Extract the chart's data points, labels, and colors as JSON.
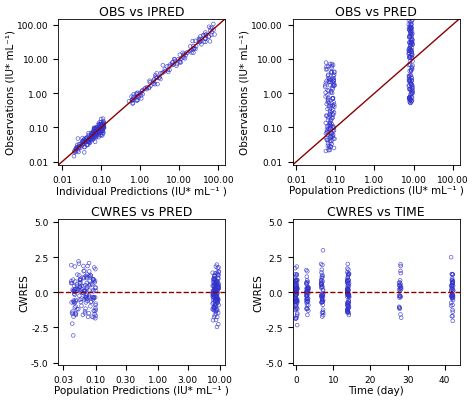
{
  "title_tl": "OBS vs IPRED",
  "title_tr": "OBS vs PRED",
  "title_bl": "CWRES vs PRED",
  "title_br": "CWRES vs TIME",
  "xlabel_tl": "Individual Predictions (IU* mL⁻¹ )",
  "xlabel_tr": "Population Predictions (IU* mL⁻¹ )",
  "xlabel_bl": "Population Predictions (IU* mL⁻¹ )",
  "xlabel_br": "Time (day)",
  "ylabel_tl": "Observations (IU* mL⁻¹)",
  "ylabel_tr": "Observations (IU* mL⁻¹)",
  "ylabel_bl": "CWRES",
  "ylabel_br": "CWRES",
  "dot_color": "#3333cc",
  "line_color": "#8b0000",
  "bg_color": "#ffffff",
  "title_fontsize": 9,
  "label_fontsize": 7.5,
  "tick_fontsize": 6.5,
  "log_ticks_top": [
    0.01,
    0.1,
    1.0,
    10.0,
    100.0
  ],
  "log_tick_labels_top": [
    "0.01",
    "0.10",
    "1.00",
    "10.00",
    "100.00"
  ],
  "log_ticks_bl": [
    0.03,
    0.1,
    0.3,
    1.0,
    3.0,
    10.0
  ],
  "log_tick_labels_bl": [
    "0.03",
    "0.10",
    "0.30",
    "1.00",
    "3.00",
    "10.00"
  ],
  "yticks_cwres": [
    -5.0,
    -2.5,
    0.0,
    2.5,
    5.0
  ],
  "ytick_labels_cwres": [
    "-5.0",
    "-2.5",
    "0.0",
    "2.5",
    "5.0"
  ],
  "xticks_time": [
    0,
    10,
    20,
    30,
    40
  ],
  "time_xlim": [
    -1,
    44
  ]
}
